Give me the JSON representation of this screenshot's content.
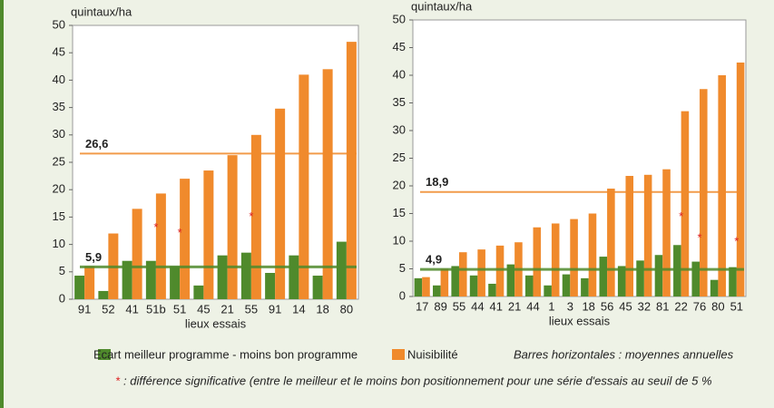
{
  "chart_data": [
    {
      "type": "bar",
      "y_label": "quintaux/ha",
      "x_label": "lieux essais",
      "categories": [
        "91",
        "52",
        "41",
        "51b",
        "51",
        "45",
        "21",
        "55",
        "91",
        "14",
        "18",
        "80"
      ],
      "series": [
        {
          "name": "Ecart meilleur programme - moins bon programme",
          "color": "#4f8a2c",
          "values": [
            4.3,
            1.5,
            7,
            7,
            6,
            2.5,
            8,
            8.5,
            4.8,
            8,
            4.3,
            10.5
          ],
          "mean": {
            "value": 5.9,
            "label": "5,9"
          }
        },
        {
          "name": "Nuisibilité",
          "color": "#f08a2c",
          "values": [
            6,
            12,
            16.5,
            19.3,
            22,
            23.5,
            26.3,
            30,
            34.8,
            41,
            42,
            47
          ],
          "mean": {
            "value": 26.6,
            "label": "26,6"
          }
        }
      ],
      "annotations": [
        {
          "text": "*",
          "category": 3,
          "y": 13
        },
        {
          "text": "*",
          "category": 4,
          "y": 12
        },
        {
          "text": "*",
          "category": 7,
          "y": 15
        }
      ],
      "ylim": [
        0,
        50
      ],
      "yticks": [
        0,
        5,
        10,
        15,
        20,
        25,
        30,
        35,
        40,
        45,
        50
      ]
    },
    {
      "type": "bar",
      "y_label": "quintaux/ha",
      "x_label": "lieux essais",
      "categories": [
        "17",
        "89",
        "55",
        "44",
        "41",
        "21",
        "44",
        "1",
        "3",
        "18",
        "56",
        "45",
        "32",
        "81",
        "22",
        "76",
        "80",
        "51"
      ],
      "series": [
        {
          "name": "Ecart meilleur programme - moins bon programme",
          "color": "#4f8a2c",
          "values": [
            3.3,
            2,
            5.5,
            3.8,
            2.3,
            5.8,
            3.8,
            2,
            4,
            3.3,
            7.2,
            5.5,
            6.5,
            7.5,
            9.3,
            6.3,
            3,
            5.3
          ],
          "mean": {
            "value": 4.9,
            "label": "4,9"
          }
        },
        {
          "name": "Nuisibilité",
          "color": "#f08a2c",
          "values": [
            3.5,
            5,
            8,
            8.5,
            9.2,
            9.8,
            12.5,
            13.2,
            14,
            15,
            19.5,
            21.8,
            22,
            23,
            33.5,
            37.5,
            40,
            42.3
          ],
          "mean": {
            "value": 18.9,
            "label": "18,9"
          }
        }
      ],
      "annotations": [
        {
          "text": "*",
          "category": 14,
          "y": 14.3
        },
        {
          "text": "*",
          "category": 15,
          "y": 10.5
        },
        {
          "text": "*",
          "category": 17,
          "y": 9.8
        }
      ],
      "ylim": [
        0,
        50
      ],
      "yticks": [
        0,
        5,
        10,
        15,
        20,
        25,
        30,
        35,
        40,
        45,
        50
      ]
    }
  ],
  "legend_note": "Barres horizontales : moyennes annuelles",
  "footnote_mark": "*",
  "footnote": ": différence significative (entre le meilleur et le moins bon positionnement pour une série d'essais au seuil de 5 %"
}
